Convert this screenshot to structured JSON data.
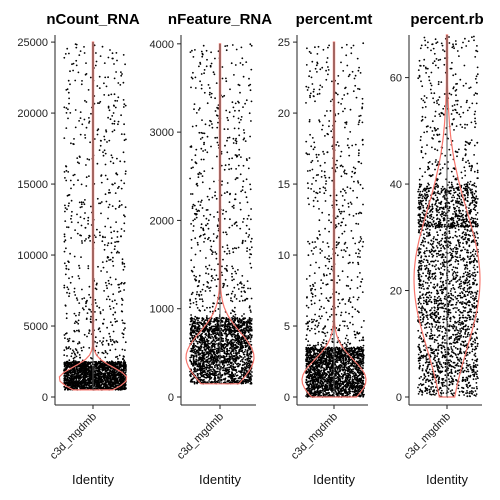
{
  "chart_data": [
    {
      "type": "violin",
      "title": "nCount_RNA",
      "categories": [
        "c3d_mgdmb"
      ],
      "xlabel": "Identity",
      "ylim": [
        0,
        25500
      ],
      "yticks": [
        0,
        5000,
        10000,
        15000,
        20000,
        25000
      ],
      "median": 1300,
      "q1": 900,
      "q3": 2100,
      "min": 500,
      "max": 25000,
      "violin_color": "#F8766D",
      "point_color": "#000000"
    },
    {
      "type": "violin",
      "title": "nFeature_RNA",
      "categories": [
        "c3d_mgdmb"
      ],
      "xlabel": "Identity",
      "ylim": [
        0,
        4100
      ],
      "yticks": [
        0,
        1000,
        2000,
        3000,
        4000
      ],
      "median": 450,
      "q1": 320,
      "q3": 750,
      "min": 150,
      "max": 4000,
      "violin_color": "#F8766D",
      "point_color": "#000000"
    },
    {
      "type": "violin",
      "title": "percent.mt",
      "categories": [
        "c3d_mgdmb"
      ],
      "xlabel": "Identity",
      "ylim": [
        0,
        25.5
      ],
      "yticks": [
        0,
        5,
        10,
        15,
        20,
        25
      ],
      "median": 1.2,
      "q1": 0.6,
      "q3": 2.8,
      "min": 0,
      "max": 25,
      "violin_color": "#F8766D",
      "point_color": "#000000"
    },
    {
      "type": "violin",
      "title": "percent.rb",
      "categories": [
        "c3d_mgdmb"
      ],
      "xlabel": "Identity",
      "ylim": [
        0,
        68
      ],
      "yticks": [
        0,
        20,
        40,
        60
      ],
      "median": 22,
      "q1": 12,
      "q3": 32,
      "min": 0,
      "max": 68,
      "violin_color": "#F8766D",
      "point_color": "#000000"
    }
  ]
}
